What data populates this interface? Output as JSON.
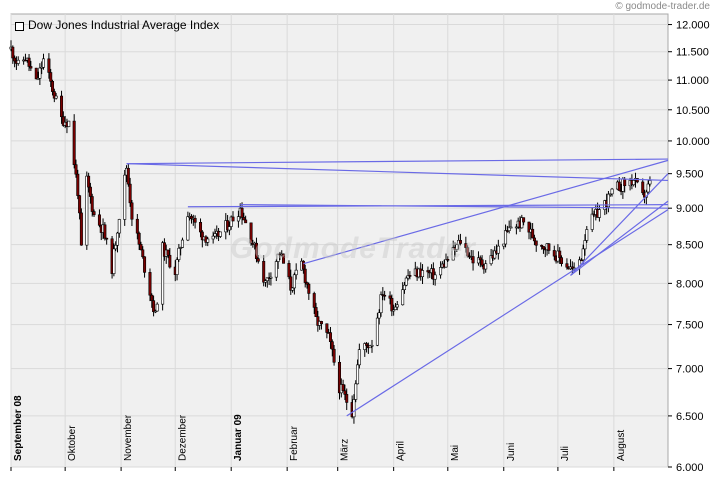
{
  "credit": "© godmode-trader.de",
  "watermark": "GodmodeTrader",
  "chart_data": {
    "type": "candlestick",
    "title": "Dow Jones Industrial Average Index",
    "ylim": [
      6000,
      12200
    ],
    "y_scale": "log",
    "grid": true,
    "yticks": [
      12000,
      11500,
      11000,
      10500,
      10000,
      9500,
      9000,
      8500,
      8000,
      7500,
      7000,
      6500,
      6000
    ],
    "ytick_labels": [
      "12.000",
      "11.500",
      "11.000",
      "10.500",
      "10.000",
      "9.500",
      "9.000",
      "8.500",
      "8.000",
      "7.500",
      "7.000",
      "6.500",
      "6.000"
    ],
    "xlim": [
      "2008-09-01",
      "2009-08-31"
    ],
    "months": [
      {
        "label": "September 08",
        "date": "2008-09-01",
        "bold": true
      },
      {
        "label": "Oktober",
        "date": "2008-10-01",
        "bold": false
      },
      {
        "label": "November",
        "date": "2008-11-01",
        "bold": false
      },
      {
        "label": "Dezember",
        "date": "2008-12-01",
        "bold": false
      },
      {
        "label": "Januar 09",
        "date": "2009-01-01",
        "bold": true
      },
      {
        "label": "Februar",
        "date": "2009-02-01",
        "bold": false
      },
      {
        "label": "März",
        "date": "2009-03-01",
        "bold": false
      },
      {
        "label": "April",
        "date": "2009-04-01",
        "bold": false
      },
      {
        "label": "Mai",
        "date": "2009-05-01",
        "bold": false
      },
      {
        "label": "Juni",
        "date": "2009-06-01",
        "bold": false
      },
      {
        "label": "Juli",
        "date": "2009-07-01",
        "bold": false
      },
      {
        "label": "August",
        "date": "2009-08-01",
        "bold": false
      }
    ],
    "close_path": [
      [
        "2008-09-01",
        11550
      ],
      [
        "2008-09-05",
        11250
      ],
      [
        "2008-09-09",
        11400
      ],
      [
        "2008-09-15",
        10950
      ],
      [
        "2008-09-19",
        11350
      ],
      [
        "2008-09-24",
        10850
      ],
      [
        "2008-09-29",
        10350
      ],
      [
        "2008-10-03",
        10300
      ],
      [
        "2008-10-08",
        9250
      ],
      [
        "2008-10-10",
        8450
      ],
      [
        "2008-10-13",
        9400
      ],
      [
        "2008-10-17",
        8900
      ],
      [
        "2008-10-22",
        8700
      ],
      [
        "2008-10-27",
        8200
      ],
      [
        "2008-11-04",
        9600
      ],
      [
        "2008-11-07",
        8900
      ],
      [
        "2008-11-12",
        8400
      ],
      [
        "2008-11-20",
        7600
      ],
      [
        "2008-11-24",
        8450
      ],
      [
        "2008-12-01",
        8150
      ],
      [
        "2008-12-08",
        8950
      ],
      [
        "2008-12-15",
        8650
      ],
      [
        "2008-12-22",
        8550
      ],
      [
        "2008-12-31",
        8800
      ],
      [
        "2009-01-06",
        9000
      ],
      [
        "2009-01-12",
        8600
      ],
      [
        "2009-01-20",
        8000
      ],
      [
        "2009-01-28",
        8400
      ],
      [
        "2009-02-03",
        7950
      ],
      [
        "2009-02-09",
        8250
      ],
      [
        "2009-02-17",
        7550
      ],
      [
        "2009-02-24",
        7350
      ],
      [
        "2009-03-02",
        6800
      ],
      [
        "2009-03-09",
        6550
      ],
      [
        "2009-03-13",
        7200
      ],
      [
        "2009-03-20",
        7300
      ],
      [
        "2009-03-26",
        7900
      ],
      [
        "2009-04-01",
        7700
      ],
      [
        "2009-04-09",
        8100
      ],
      [
        "2009-04-17",
        8150
      ],
      [
        "2009-04-24",
        8100
      ],
      [
        "2009-05-04",
        8400
      ],
      [
        "2009-05-08",
        8550
      ],
      [
        "2009-05-15",
        8300
      ],
      [
        "2009-05-21",
        8250
      ],
      [
        "2009-05-28",
        8400
      ],
      [
        "2009-06-05",
        8750
      ],
      [
        "2009-06-12",
        8800
      ],
      [
        "2009-06-19",
        8550
      ],
      [
        "2009-06-26",
        8450
      ],
      [
        "2009-07-03",
        8300
      ],
      [
        "2009-07-10",
        8150
      ],
      [
        "2009-07-14",
        8350
      ],
      [
        "2009-07-17",
        8750
      ],
      [
        "2009-07-22",
        8900
      ],
      [
        "2009-07-28",
        9100
      ],
      [
        "2009-08-03",
        9300
      ],
      [
        "2009-08-07",
        9350
      ],
      [
        "2009-08-12",
        9400
      ],
      [
        "2009-08-17",
        9150
      ],
      [
        "2009-08-21",
        9350
      ]
    ],
    "trendlines": [
      {
        "from": [
          "2008-11-04",
          9650
        ],
        "to": [
          "2009-08-31",
          9720
        ]
      },
      {
        "from": [
          "2008-11-04",
          9650
        ],
        "to": [
          "2009-08-31",
          9400
        ]
      },
      {
        "from": [
          "2008-12-08",
          9020
        ],
        "to": [
          "2009-08-31",
          9050
        ]
      },
      {
        "from": [
          "2009-01-06",
          9050
        ],
        "to": [
          "2009-08-31",
          9000
        ]
      },
      {
        "from": [
          "2009-02-10",
          8250
        ],
        "to": [
          "2009-08-31",
          9700
        ]
      },
      {
        "from": [
          "2009-03-06",
          6500
        ],
        "to": [
          "2009-08-31",
          8980
        ]
      },
      {
        "from": [
          "2009-07-08",
          8100
        ],
        "to": [
          "2009-08-31",
          9500
        ]
      },
      {
        "from": [
          "2009-07-08",
          8100
        ],
        "to": [
          "2009-08-31",
          9100
        ]
      }
    ],
    "colors": {
      "up": "#ffffff",
      "down": "#7a0000",
      "wick": "#000000",
      "trendline": "#6a6ae6",
      "grid": "#dadada",
      "panel": "#f0f0f0"
    }
  }
}
